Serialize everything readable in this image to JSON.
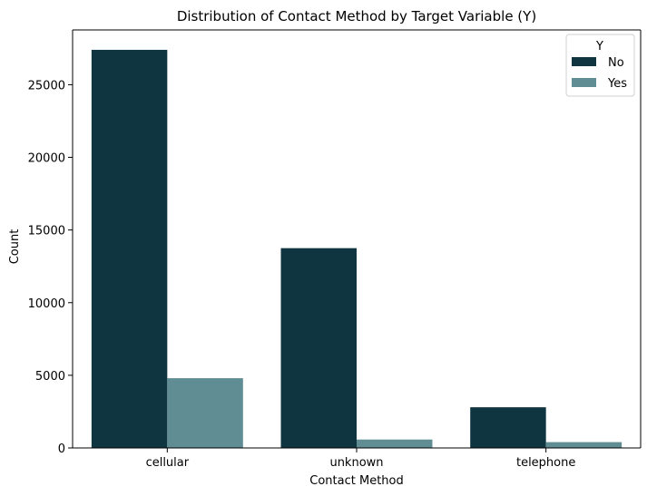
{
  "chart_data": {
    "type": "bar",
    "title": "Distribution of Contact Method by Target Variable (Y)",
    "xlabel": "Contact Method",
    "ylabel": "Count",
    "categories": [
      "cellular",
      "unknown",
      "telephone"
    ],
    "series": [
      {
        "name": "No",
        "values": [
          27400,
          13750,
          2800
        ],
        "color": "#0f3640"
      },
      {
        "name": "Yes",
        "values": [
          4800,
          580,
          400
        ],
        "color": "#5f8d93"
      }
    ],
    "ylim": [
      0,
      28770
    ],
    "yticks": [
      0,
      5000,
      10000,
      15000,
      20000,
      25000
    ],
    "grid": false,
    "legend": {
      "title": "Y",
      "placement": "top-right"
    }
  }
}
